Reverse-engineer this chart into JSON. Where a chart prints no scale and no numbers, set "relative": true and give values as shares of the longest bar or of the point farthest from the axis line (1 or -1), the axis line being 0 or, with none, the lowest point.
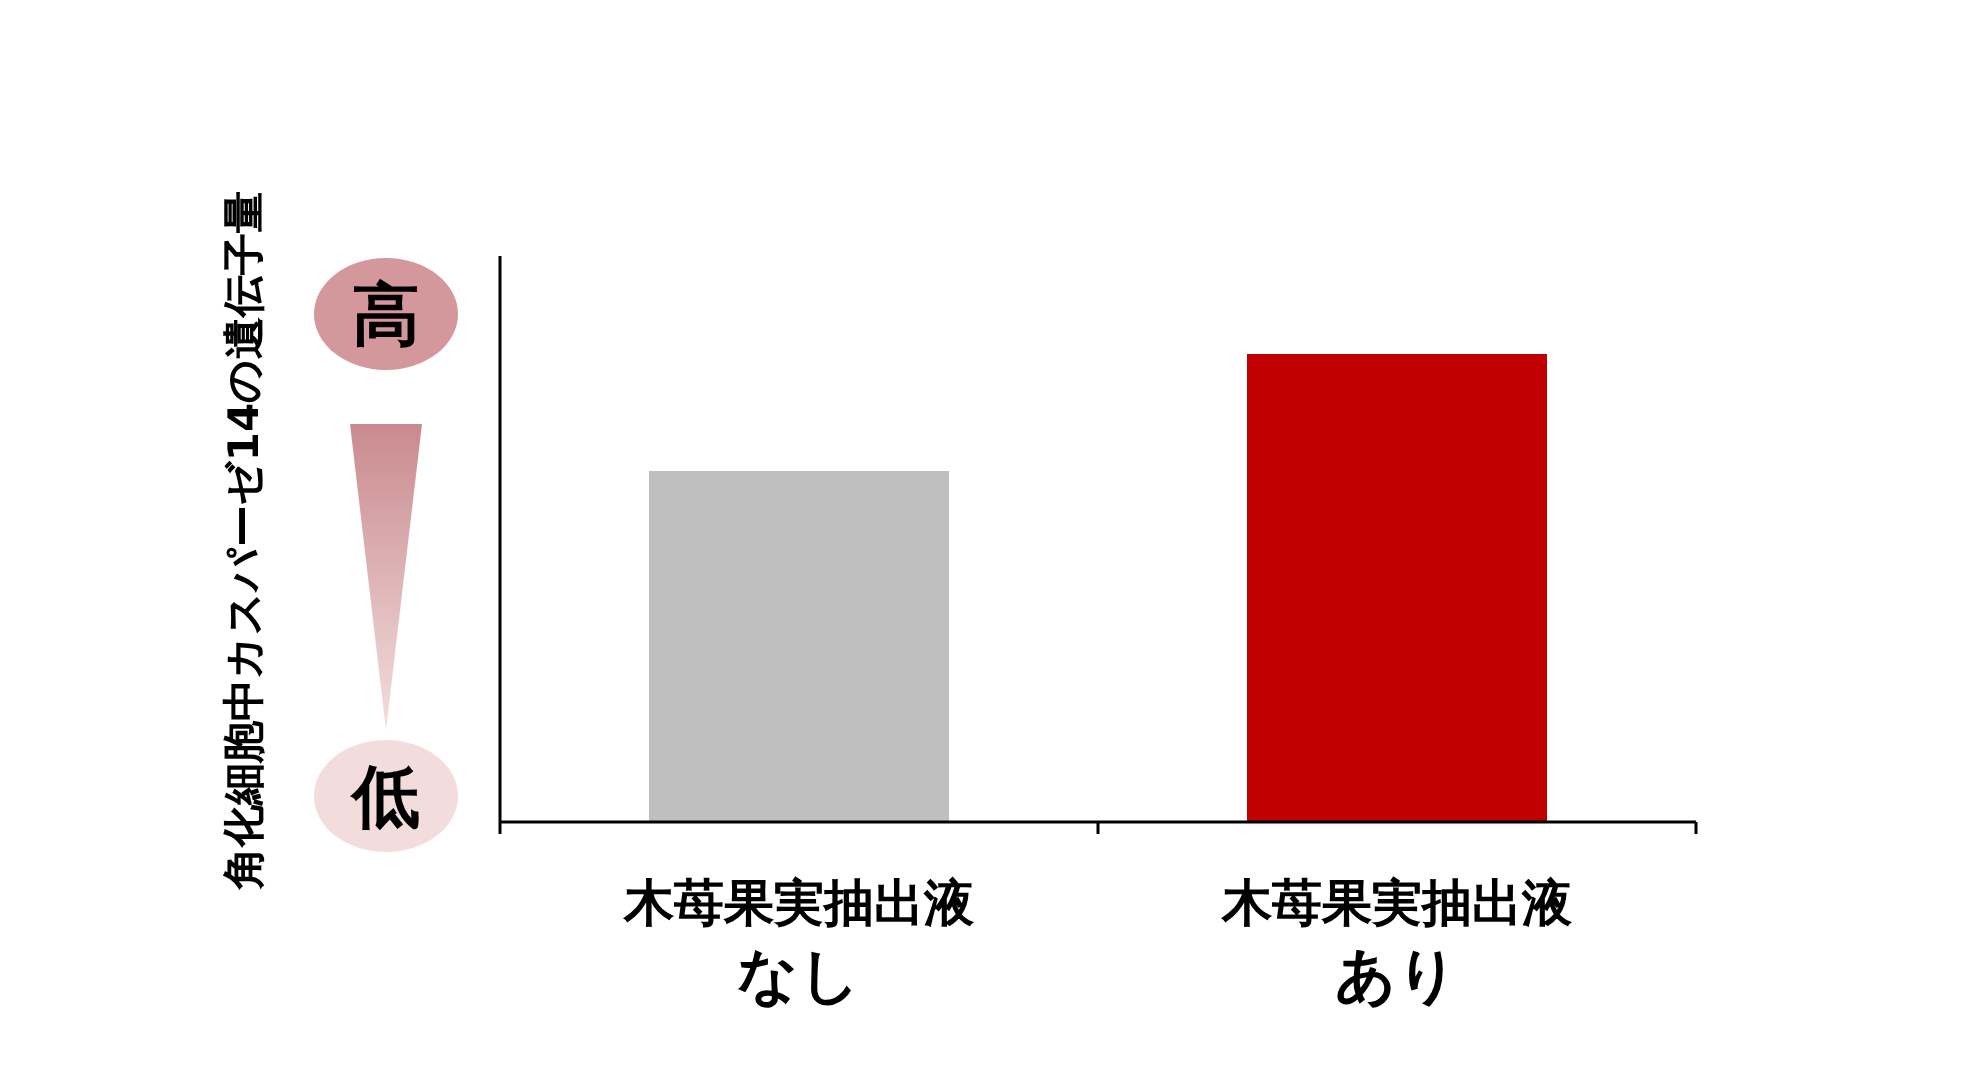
{
  "chart_data": {
    "type": "bar",
    "relative": true,
    "categories": [
      "木苺果実抽出液なし",
      "木苺果実抽出液あり"
    ],
    "values": [
      0.75,
      1
    ],
    "colors": [
      "#bfbfbf",
      "#c00000"
    ],
    "annotations": [
      "角化細胞中カスパーゼ14の遺伝子量",
      "高",
      "低"
    ]
  }
}
